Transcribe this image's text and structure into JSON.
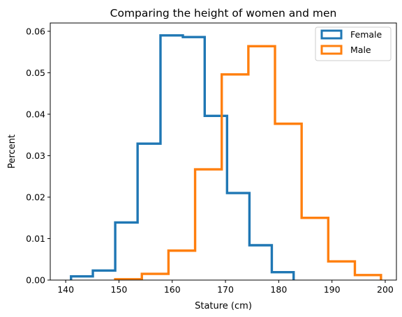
{
  "chart_data": {
    "type": "histogram-step",
    "title": "Comparing the height of women and men",
    "xlabel": "Stature (cm)",
    "ylabel": "Percent",
    "xlim": [
      137.1,
      202.1
    ],
    "ylim": [
      0,
      0.062
    ],
    "xticks": [
      140,
      150,
      160,
      170,
      180,
      190,
      200
    ],
    "yticks": [
      0.0,
      0.01,
      0.02,
      0.03,
      0.04,
      0.05,
      0.06
    ],
    "ytick_labels": [
      "0.00",
      "0.01",
      "0.02",
      "0.03",
      "0.04",
      "0.05",
      "0.06"
    ],
    "grid": false,
    "legend_position": "top-right",
    "series": [
      {
        "name": "Female",
        "color": "#1f77b4",
        "bin_edges": [
          141,
          145.1,
          149.3,
          153.5,
          157.8,
          162,
          166.1,
          170.3,
          174.5,
          178.7,
          182.8
        ],
        "values": [
          0.0009,
          0.0023,
          0.0139,
          0.0329,
          0.059,
          0.0586,
          0.0396,
          0.021,
          0.0084,
          0.0019
        ]
      },
      {
        "name": "Male",
        "color": "#ff7f0e",
        "bin_edges": [
          149.3,
          154.3,
          159.3,
          164.3,
          169.3,
          174.3,
          179.3,
          184.3,
          189.3,
          194.3,
          199.2
        ],
        "values": [
          0.0002,
          0.0015,
          0.0071,
          0.0267,
          0.0496,
          0.0564,
          0.0377,
          0.015,
          0.0045,
          0.0012
        ]
      }
    ]
  }
}
